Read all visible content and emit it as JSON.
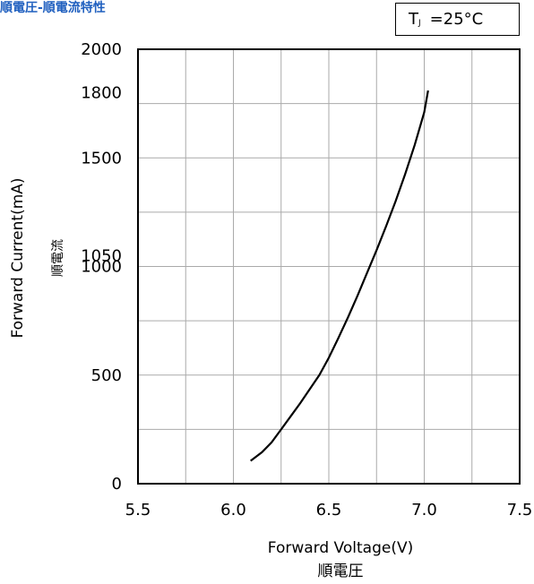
{
  "header": {
    "title": "順電圧-順電流特性",
    "temp_label_main": "T",
    "temp_label_sub": "J",
    "temp_label_value": " =25°C"
  },
  "chart_data": {
    "type": "line",
    "title": "順電圧-順電流特性",
    "xlabel": "Forward Voltage(V)",
    "xlabel_jp": "順電圧",
    "ylabel": "Forward Current(mA)",
    "ylabel_jp": "順電流",
    "xlim": [
      5.5,
      7.5
    ],
    "ylim": [
      0,
      2000
    ],
    "x_ticks": [
      5.5,
      6.0,
      6.5,
      7.0,
      7.5
    ],
    "x_tick_labels": [
      "5.5",
      "6.0",
      "6.5",
      "7.0",
      "7.5"
    ],
    "y_ticks": [
      0,
      500,
      1000,
      1050,
      1500,
      1800,
      2000
    ],
    "y_tick_labels": [
      "0",
      "500",
      "1000",
      "1050",
      "1500",
      "1800",
      "2000"
    ],
    "x_gridlines": [
      5.75,
      6.0,
      6.25,
      6.5,
      6.75,
      7.0,
      7.25
    ],
    "y_gridlines": [
      250,
      500,
      750,
      1000,
      1250,
      1500,
      1750
    ],
    "grid": true,
    "line_color": "#000000",
    "grid_color": "#aaaaaa",
    "series": [
      {
        "x": [
          6.09,
          6.15,
          6.2,
          6.25,
          6.3,
          6.35,
          6.4,
          6.45,
          6.5,
          6.55,
          6.6,
          6.65,
          6.7,
          6.75,
          6.8,
          6.85,
          6.9,
          6.95,
          7.0,
          7.02
        ],
        "y": [
          105,
          145,
          190,
          250,
          310,
          370,
          435,
          500,
          580,
          670,
          765,
          865,
          970,
          1075,
          1185,
          1300,
          1425,
          1560,
          1710,
          1810
        ]
      }
    ]
  }
}
